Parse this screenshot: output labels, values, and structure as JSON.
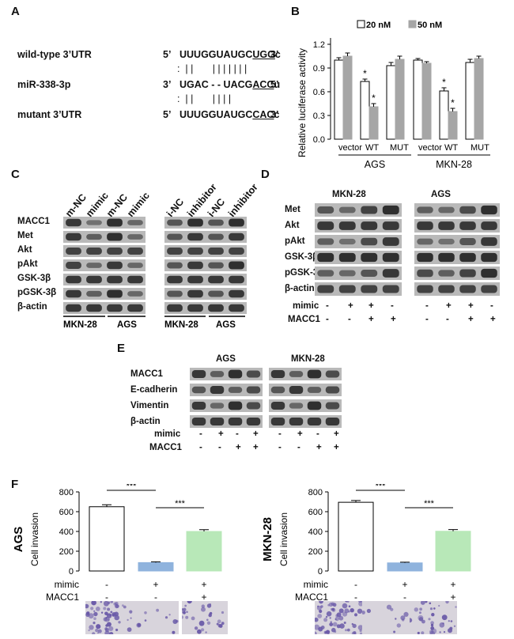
{
  "panels": {
    "A": "A",
    "B": "B",
    "C": "C",
    "D": "D",
    "E": "E",
    "F": "F"
  },
  "panel_a": {
    "rows": [
      {
        "label": "wild-type 3’UTR",
        "p5": "5’",
        "seq": "UUUGGUAUGCUGGc",
        "seq_plain": "UUUGGUAUGC",
        "seq_under": "UGG",
        "seq_tail": "c",
        "p3": "3’"
      },
      {
        "label": "miR-338-3p",
        "p5": "3’",
        "seq": "UGAC - - UACGACCu",
        "seq_plain": "UGAC - - UACG",
        "seq_under": "ACC",
        "seq_tail": "u",
        "p3": "5’"
      },
      {
        "label": "mutant 3’UTR",
        "p5": "5’",
        "seq": "UUUGGUAUGCCACc",
        "seq_plain": "UUUGGUAUGC",
        "seq_under": "CAC",
        "seq_tail": "c",
        "p3": "3’"
      }
    ],
    "pair_line1": ":  | |       | | | | | | |",
    "pair_line2": ":  | |       | | | |"
  },
  "chart_data": [
    {
      "id": "B",
      "type": "bar",
      "ylabel": "Relative luciferase activity",
      "ylim": [
        0,
        1.2
      ],
      "yticks": [
        "0.0",
        "0.3",
        "0.6",
        "0.9",
        "1.2"
      ],
      "legend": [
        "20 nM",
        "50 nM"
      ],
      "legend_placement": "top",
      "categories": [
        "vector",
        "WT",
        "MUT",
        "vector",
        "WT",
        "MUT"
      ],
      "groups": [
        "AGS",
        "MKN-28"
      ],
      "series": [
        {
          "name": "20 nM",
          "color": "#ffffff",
          "values": [
            1.0,
            0.73,
            0.93,
            1.0,
            0.61,
            0.97
          ],
          "errors": [
            0.03,
            0.03,
            0.04,
            0.02,
            0.04,
            0.04
          ]
        },
        {
          "name": "50 nM",
          "color": "#a6a6a6",
          "values": [
            1.05,
            0.41,
            1.01,
            0.96,
            0.35,
            1.02
          ],
          "errors": [
            0.04,
            0.04,
            0.04,
            0.02,
            0.04,
            0.03
          ]
        }
      ],
      "significance": [
        "*",
        "*",
        "*",
        "*"
      ]
    },
    {
      "id": "F-AGS",
      "type": "bar",
      "row_label": "AGS",
      "ylabel": "Cell invasion",
      "ylim": [
        0,
        800
      ],
      "yticks": [
        "0",
        "200",
        "400",
        "600",
        "800"
      ],
      "values": [
        650,
        85,
        400
      ],
      "errors": [
        20,
        8,
        18
      ],
      "colors": [
        "#ffffff",
        "#8fb3dd",
        "#b8e8b8"
      ],
      "significance": [
        "***",
        "***"
      ],
      "mimic": [
        "-",
        "+",
        "+"
      ],
      "macc1": [
        "-",
        "-",
        "+"
      ]
    },
    {
      "id": "F-MKN-28",
      "type": "bar",
      "row_label": "MKN-28",
      "ylabel": "Cell invasion",
      "ylim": [
        0,
        800
      ],
      "yticks": [
        "0",
        "200",
        "400",
        "600",
        "800"
      ],
      "values": [
        695,
        82,
        402
      ],
      "errors": [
        18,
        7,
        17
      ],
      "colors": [
        "#ffffff",
        "#8fb3dd",
        "#b8e8b8"
      ],
      "significance": [
        "***",
        "***"
      ],
      "mimic": [
        "-",
        "+",
        "+"
      ],
      "macc1": [
        "-",
        "-",
        "+"
      ]
    }
  ],
  "panel_b": {
    "legend_20": "20 nM",
    "legend_50": "50 nM",
    "cats": [
      "vector",
      "WT",
      "MUT",
      "vector",
      "WT",
      "MUT"
    ],
    "group_ags": "AGS",
    "group_mkn": "MKN-28"
  },
  "panel_c": {
    "rows": [
      "MACC1",
      "Met",
      "Akt",
      "pAkt",
      "GSK-3β",
      "pGSK-3β",
      "β-actin"
    ],
    "left_lanes": [
      "m-NC",
      "mimic",
      "m-NC",
      "mimic"
    ],
    "right_lanes": [
      "i-NC",
      "inhibitor",
      "i-NC",
      "inhibitor"
    ],
    "left_cells": [
      "MKN-28",
      "AGS"
    ],
    "right_cells": [
      "MKN-28",
      "AGS"
    ]
  },
  "panel_d": {
    "cells": [
      "MKN-28",
      "AGS"
    ],
    "rows": [
      "Met",
      "Akt",
      "pAkt",
      "GSK-3β",
      "pGSK-3β",
      "β-actin"
    ],
    "treat_labels": [
      "mimic",
      "MACC1"
    ],
    "mimic": [
      "-",
      "+",
      "+",
      "-",
      "-",
      "+",
      "+",
      "-"
    ],
    "macc1": [
      "-",
      "-",
      "+",
      "+",
      "-",
      "-",
      "+",
      "+"
    ]
  },
  "panel_e": {
    "cells": [
      "AGS",
      "MKN-28"
    ],
    "rows": [
      "MACC1",
      "E-cadherin",
      "Vimentin",
      "β-actin"
    ],
    "treat_labels": [
      "mimic",
      "MACC1"
    ],
    "mimic": [
      "-",
      "+",
      "-",
      "+",
      "-",
      "+",
      "-",
      "+"
    ],
    "macc1": [
      "-",
      "-",
      "+",
      "+",
      "-",
      "-",
      "+",
      "+"
    ]
  },
  "panel_f": {
    "treat_labels": [
      "mimic",
      "MACC1"
    ]
  },
  "colors": {
    "blot_bg": "#b9b9b9",
    "band": "#2a2a2a",
    "bar_gray": "#a6a6a6",
    "bar_blue": "#8fb3dd",
    "bar_green": "#b8e8b8",
    "stain": "#6a5aa8"
  }
}
